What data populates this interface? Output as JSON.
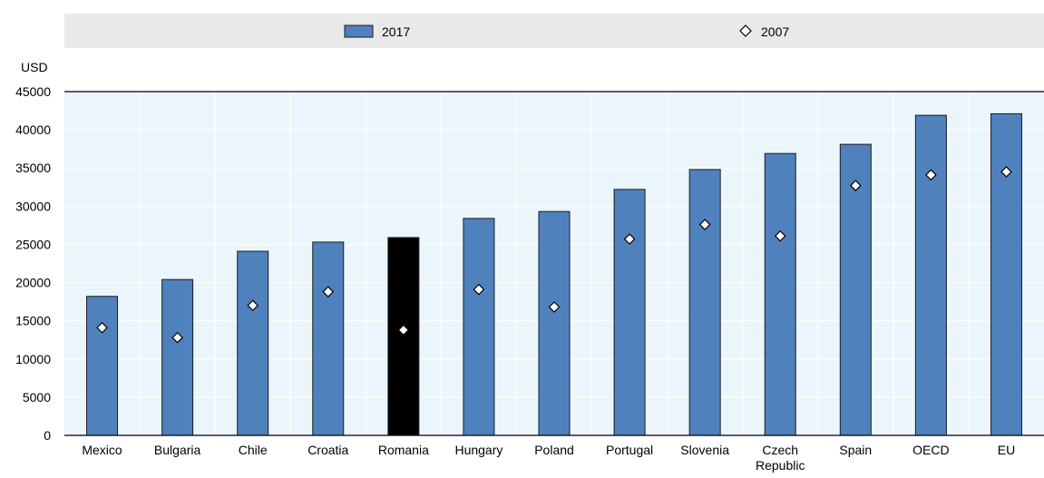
{
  "chart_data": {
    "type": "bar",
    "unit_label": "USD",
    "legend": {
      "position": "top",
      "entries": [
        "2017",
        "2007"
      ]
    },
    "categories": [
      "Mexico",
      "Bulgaria",
      "Chile",
      "Croatia",
      "Romania",
      "Hungary",
      "Poland",
      "Portugal",
      "Slovenia",
      "Czech Republic",
      "Spain",
      "OECD",
      "EU"
    ],
    "category_lines": [
      [
        "Mexico"
      ],
      [
        "Bulgaria"
      ],
      [
        "Chile"
      ],
      [
        "Croatia"
      ],
      [
        "Romania"
      ],
      [
        "Hungary"
      ],
      [
        "Poland"
      ],
      [
        "Portugal"
      ],
      [
        "Slovenia"
      ],
      [
        "Czech",
        "Republic"
      ],
      [
        "Spain"
      ],
      [
        "OECD"
      ],
      [
        "EU"
      ]
    ],
    "series": [
      {
        "name": "2017",
        "kind": "bar",
        "values": [
          18200,
          20400,
          24100,
          25300,
          25900,
          28400,
          29300,
          32200,
          34800,
          36900,
          38100,
          41900,
          42100
        ]
      },
      {
        "name": "2007",
        "kind": "marker",
        "values": [
          14100,
          12800,
          17000,
          18800,
          13800,
          19100,
          16800,
          25700,
          27600,
          26100,
          32700,
          34100,
          34500
        ]
      }
    ],
    "highlight": {
      "category": "Romania",
      "color": "#000000"
    },
    "colors": {
      "bar": "#4f81bd",
      "bar_stroke": "#1c1c1c",
      "highlight": "#000000",
      "plot_bg": "#eaf6fb",
      "legend_bg": "#e9e9e9",
      "grid": "#ffffff"
    },
    "ylim": [
      0,
      45000
    ],
    "yticks": [
      0,
      5000,
      10000,
      15000,
      20000,
      25000,
      30000,
      35000,
      40000,
      45000
    ],
    "grid": true
  }
}
